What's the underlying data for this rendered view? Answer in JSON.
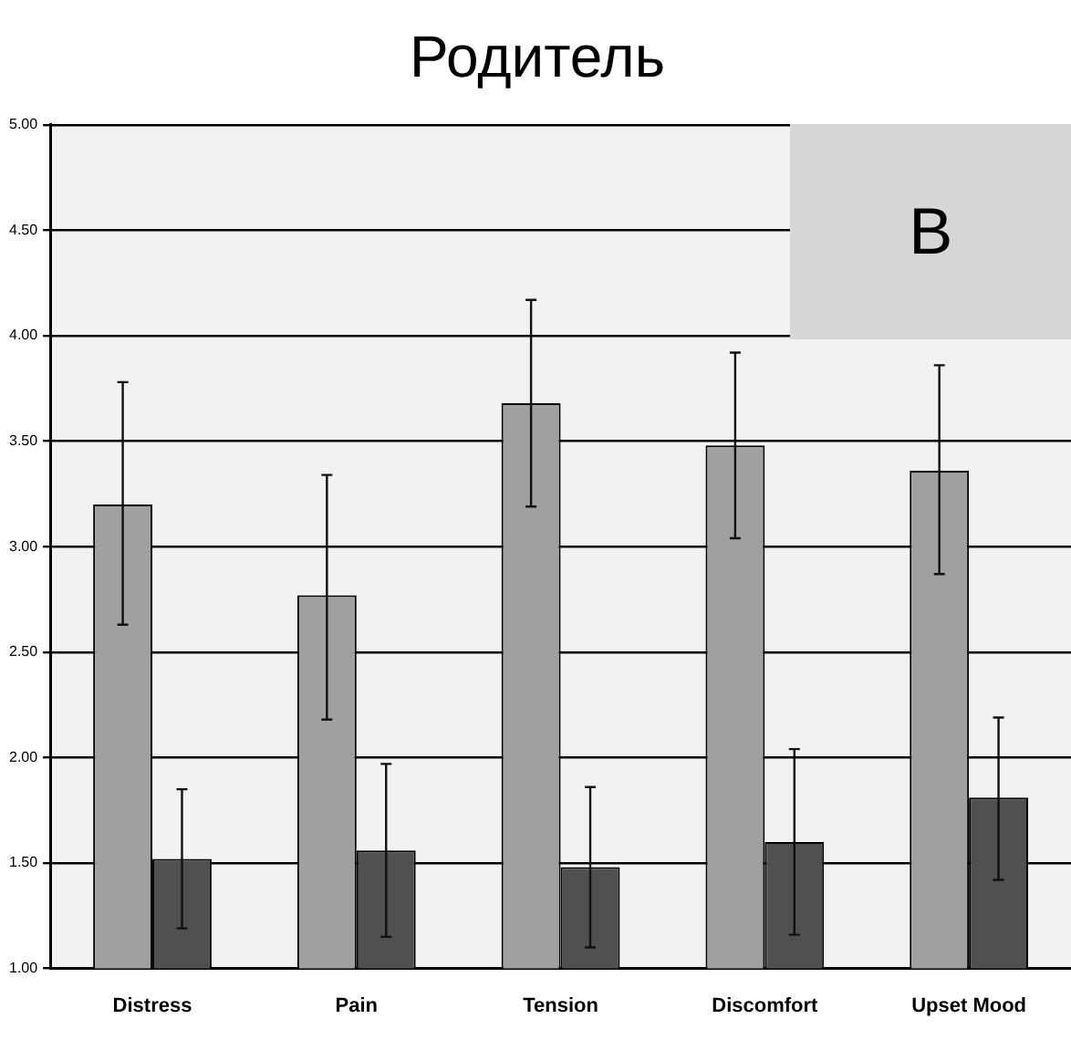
{
  "chart_data": {
    "type": "bar",
    "title": "Родитель",
    "categories": [
      "Distress",
      "Pain",
      "Tension",
      "Discomfort",
      "Upset Mood"
    ],
    "series": [
      {
        "color": "#a0a0a0",
        "values": [
          3.2,
          2.77,
          3.68,
          3.48,
          3.36
        ],
        "errors": [
          [
            2.63,
            3.78
          ],
          [
            2.18,
            3.34
          ],
          [
            3.19,
            4.17
          ],
          [
            3.04,
            3.92
          ],
          [
            2.87,
            3.86
          ]
        ]
      },
      {
        "color": "#505050",
        "values": [
          1.52,
          1.56,
          1.48,
          1.6,
          1.81
        ],
        "errors": [
          [
            1.19,
            1.85
          ],
          [
            1.15,
            1.97
          ],
          [
            1.1,
            1.86
          ],
          [
            1.16,
            2.04
          ],
          [
            1.42,
            2.19
          ]
        ]
      }
    ],
    "ylim": [
      1,
      5
    ],
    "yticks": [
      {
        "value": 1,
        "label": "1.00"
      },
      {
        "value": 1.5,
        "label": "1.50"
      },
      {
        "value": 2,
        "label": "2.00"
      },
      {
        "value": 2.5,
        "label": "2.50"
      },
      {
        "value": 3,
        "label": "3.00"
      },
      {
        "value": 3.5,
        "label": "3.50"
      },
      {
        "value": 4,
        "label": "4.00"
      },
      {
        "value": 4.5,
        "label": "4.50"
      },
      {
        "value": 5,
        "label": "5.00"
      }
    ],
    "grid": "y",
    "legend": false,
    "annotations": [
      "B"
    ]
  }
}
